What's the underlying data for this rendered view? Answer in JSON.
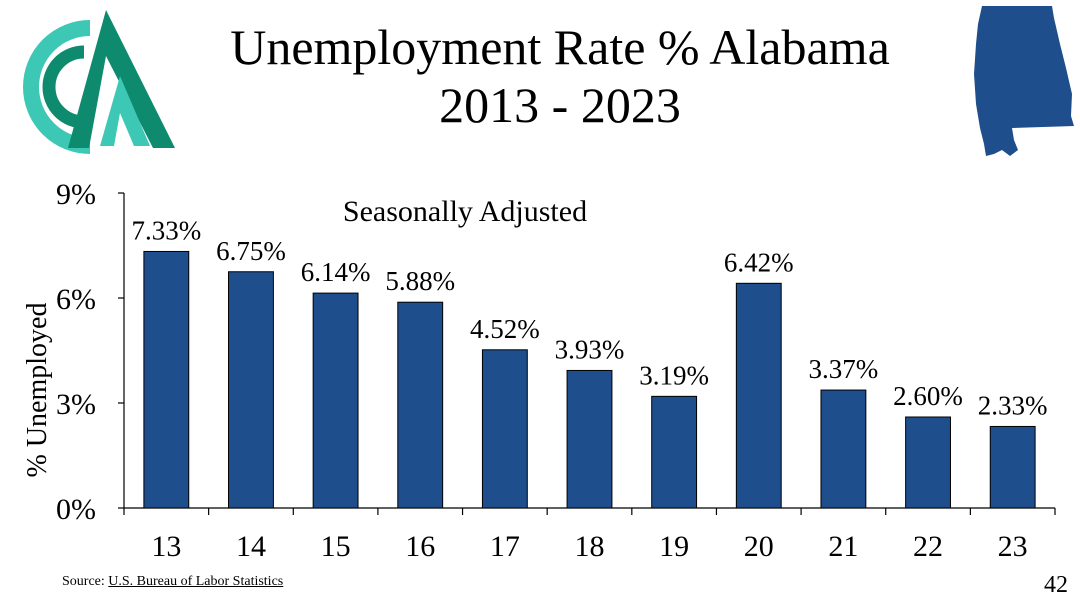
{
  "slide": {
    "title_line1": "Unemployment Rate % Alabama",
    "title_line2": "2013 - 2023",
    "source_label": "Source:",
    "source_link": "U.S. Bureau of Labor Statistics",
    "page_number": "42",
    "logo_icon": "organization-logo-icon",
    "map_icon": "alabama-state-map-icon",
    "colors": {
      "bar": "#1F4E8C",
      "logo_dark": "#0E8A6E",
      "logo_light": "#3CC8B4",
      "map": "#1F4E8C"
    }
  },
  "chart_data": {
    "type": "bar",
    "subtitle": "Seasonally Adjusted",
    "ylabel": "% Unemployed",
    "xlabel": "",
    "categories": [
      "13",
      "14",
      "15",
      "16",
      "17",
      "18",
      "19",
      "20",
      "21",
      "22",
      "23"
    ],
    "values": [
      7.33,
      6.75,
      6.14,
      5.88,
      4.52,
      3.93,
      3.19,
      6.42,
      3.37,
      2.6,
      2.33
    ],
    "data_labels": [
      "7.33%",
      "6.75%",
      "6.14%",
      "5.88%",
      "4.52%",
      "3.93%",
      "3.19%",
      "6.42%",
      "3.37%",
      "2.60%",
      "2.33%"
    ],
    "yticks": [
      0,
      3,
      6,
      9
    ],
    "ytick_labels": [
      "0%",
      "3%",
      "6%",
      "9%"
    ],
    "ylim": [
      0,
      9
    ],
    "grid": false,
    "legend": "none"
  }
}
